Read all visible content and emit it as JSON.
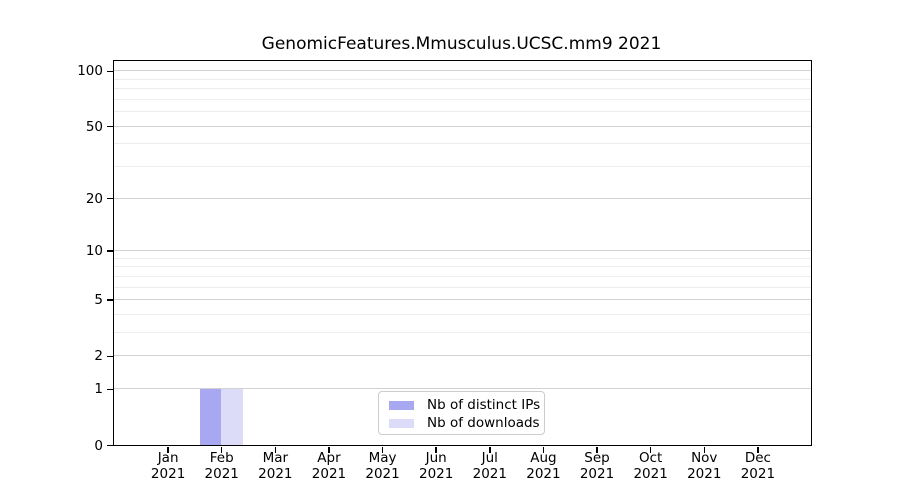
{
  "title": "GenomicFeatures.Mmusculus.UCSC.mm9 2021",
  "chart_data": {
    "type": "bar",
    "title": "GenomicFeatures.Mmusculus.UCSC.mm9 2021",
    "x_ticks": [
      {
        "month": "Jan",
        "year": "2021"
      },
      {
        "month": "Feb",
        "year": "2021"
      },
      {
        "month": "Mar",
        "year": "2021"
      },
      {
        "month": "Apr",
        "year": "2021"
      },
      {
        "month": "May",
        "year": "2021"
      },
      {
        "month": "Jun",
        "year": "2021"
      },
      {
        "month": "Jul",
        "year": "2021"
      },
      {
        "month": "Aug",
        "year": "2021"
      },
      {
        "month": "Sep",
        "year": "2021"
      },
      {
        "month": "Oct",
        "year": "2021"
      },
      {
        "month": "Nov",
        "year": "2021"
      },
      {
        "month": "Dec",
        "year": "2021"
      }
    ],
    "series": [
      {
        "name": "Nb of distinct IPs",
        "color": "#a8a8f2",
        "values": [
          0,
          1,
          0,
          0,
          0,
          0,
          0,
          0,
          0,
          0,
          0,
          0
        ]
      },
      {
        "name": "Nb of downloads",
        "color": "#dcdcf8",
        "values": [
          0,
          1,
          0,
          0,
          0,
          0,
          0,
          0,
          0,
          0,
          0,
          0
        ]
      }
    ],
    "yscale": "log1p",
    "ylim": [
      0,
      113
    ],
    "y_major_ticks": [
      0,
      1,
      2,
      5,
      10,
      20,
      50,
      100
    ],
    "y_minor_gridlines": [
      3,
      4,
      6,
      7,
      8,
      9,
      30,
      40,
      60,
      70,
      80,
      90
    ],
    "grid": "horizontal, major and minor",
    "legend_position": "lower center",
    "colors": {
      "major_grid": "#d2d2d2",
      "minor_grid": "#ededed",
      "spine": "#000000",
      "text": "#000000",
      "legend_border": "#cccccc",
      "background": "#ffffff"
    }
  }
}
